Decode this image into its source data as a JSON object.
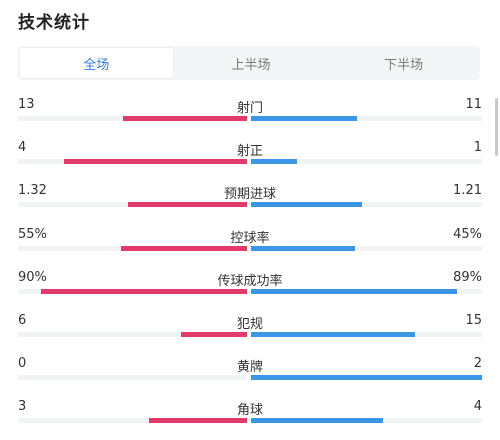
{
  "title": "技术统计",
  "tabs": [
    {
      "label": "全场",
      "active": true
    },
    {
      "label": "上半场",
      "active": false
    },
    {
      "label": "下半场",
      "active": false
    }
  ],
  "colors": {
    "home": "#e23b6b",
    "away": "#3b97e5",
    "active_tab": "#2f7fe0"
  },
  "stats": [
    {
      "label": "射门",
      "home": "13",
      "away": "11",
      "home_share": 0.54,
      "away_share": 0.46
    },
    {
      "label": "射正",
      "home": "4",
      "away": "1",
      "home_share": 0.8,
      "away_share": 0.2
    },
    {
      "label": "预期进球",
      "home": "1.32",
      "away": "1.21",
      "home_share": 0.52,
      "away_share": 0.48
    },
    {
      "label": "控球率",
      "home": "55%",
      "away": "45%",
      "home_share": 0.55,
      "away_share": 0.45
    },
    {
      "label": "传球成功率",
      "home": "90%",
      "away": "89%",
      "home_share": 0.9,
      "away_share": 0.89
    },
    {
      "label": "犯规",
      "home": "6",
      "away": "15",
      "home_share": 0.29,
      "away_share": 0.71
    },
    {
      "label": "黄牌",
      "home": "0",
      "away": "2",
      "home_share": 0.0,
      "away_share": 1.0
    },
    {
      "label": "角球",
      "home": "3",
      "away": "4",
      "home_share": 0.43,
      "away_share": 0.57
    }
  ]
}
